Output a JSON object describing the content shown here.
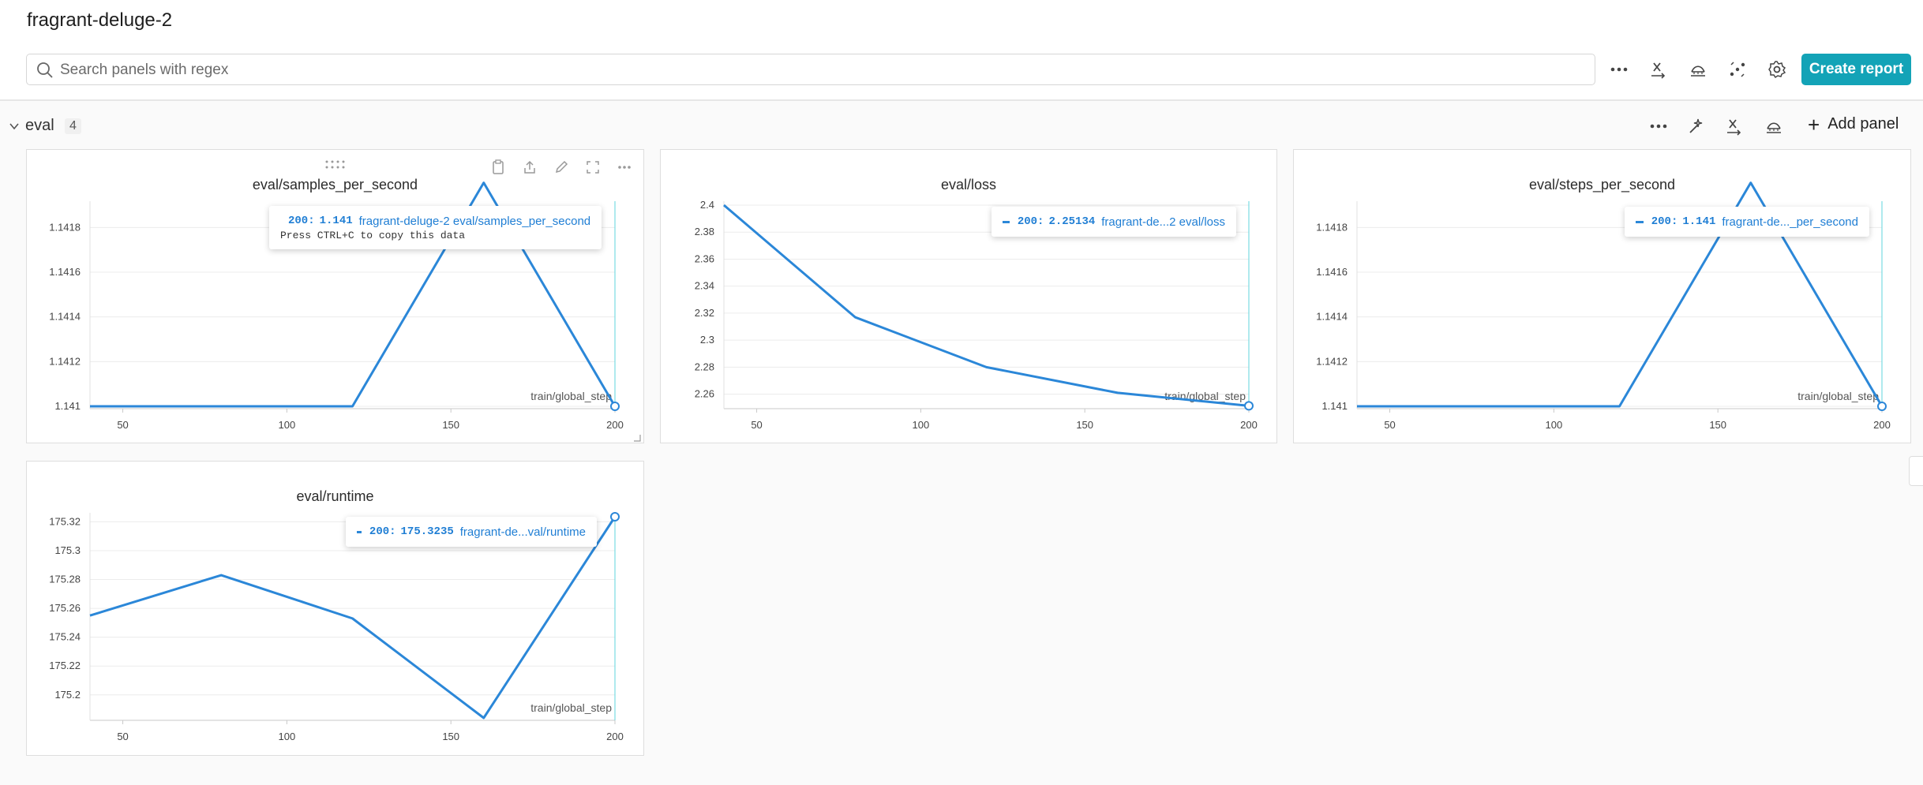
{
  "header": {
    "run_name": "fragrant-deluge-2",
    "search_placeholder": "Search panels with regex",
    "create_report_label": "Create report"
  },
  "section": {
    "title": "eval",
    "count": "4",
    "add_panel_label": "Add panel"
  },
  "colors": {
    "accent": "#13a3b7",
    "series": "#2b87d8",
    "cursor": "#5fd4de"
  },
  "panels": [
    {
      "title": "eval/samples_per_second",
      "tooltip": {
        "step": "200:",
        "value": "1.141",
        "name": "fragrant-deluge-2 eval/samples_per_second",
        "hint": "Press CTRL+C to copy this data"
      }
    },
    {
      "title": "eval/loss",
      "tooltip": {
        "step": "200:",
        "value": "2.25134",
        "name": "fragrant-de...2 eval/loss"
      }
    },
    {
      "title": "eval/steps_per_second",
      "tooltip": {
        "step": "200:",
        "value": "1.141",
        "name": "fragrant-de..._per_second"
      }
    },
    {
      "title": "eval/runtime",
      "tooltip": {
        "step": "200:",
        "value": "175.3235",
        "name": "fragrant-de...val/runtime"
      }
    }
  ],
  "chart_data": [
    {
      "type": "line",
      "title": "eval/samples_per_second",
      "xlabel": "train/global_step",
      "x": [
        40,
        80,
        120,
        160,
        200
      ],
      "series": [
        {
          "values": [
            1.141,
            1.141,
            1.141,
            1.142,
            1.141
          ]
        }
      ],
      "xticks": [
        50,
        100,
        150,
        200
      ],
      "yticks": [
        1.141,
        1.1412,
        1.1414,
        1.1416,
        1.1418
      ],
      "ytick_labels": [
        "1.141",
        "1.1412",
        "1.1414",
        "1.1416",
        "1.1418"
      ],
      "xlim": [
        40,
        200
      ],
      "ylim": [
        1.141,
        1.1419
      ],
      "grid": true
    },
    {
      "type": "line",
      "title": "eval/loss",
      "xlabel": "train/global_step",
      "x": [
        40,
        80,
        120,
        160,
        200
      ],
      "series": [
        {
          "values": [
            2.4,
            2.317,
            2.28,
            2.261,
            2.25134
          ]
        }
      ],
      "xticks": [
        50,
        100,
        150,
        200
      ],
      "yticks": [
        2.26,
        2.28,
        2.3,
        2.32,
        2.34,
        2.36,
        2.38,
        2.4
      ],
      "ytick_labels": [
        "2.26",
        "2.28",
        "2.3",
        "2.32",
        "2.34",
        "2.36",
        "2.38",
        "2.4"
      ],
      "xlim": [
        40,
        200
      ],
      "ylim": [
        2.251,
        2.4
      ],
      "grid": true
    },
    {
      "type": "line",
      "title": "eval/steps_per_second",
      "xlabel": "train/global_step",
      "x": [
        40,
        80,
        120,
        160,
        200
      ],
      "series": [
        {
          "values": [
            1.141,
            1.141,
            1.141,
            1.142,
            1.141
          ]
        }
      ],
      "xticks": [
        50,
        100,
        150,
        200
      ],
      "yticks": [
        1.141,
        1.1412,
        1.1414,
        1.1416,
        1.1418
      ],
      "ytick_labels": [
        "1.141",
        "1.1412",
        "1.1414",
        "1.1416",
        "1.1418"
      ],
      "xlim": [
        40,
        200
      ],
      "ylim": [
        1.141,
        1.1419
      ],
      "grid": true
    },
    {
      "type": "line",
      "title": "eval/runtime",
      "xlabel": "train/global_step",
      "x": [
        40,
        80,
        120,
        160,
        200
      ],
      "series": [
        {
          "values": [
            175.255,
            175.283,
            175.253,
            175.184,
            175.3235
          ]
        }
      ],
      "xticks": [
        50,
        100,
        150,
        200
      ],
      "yticks": [
        175.2,
        175.22,
        175.24,
        175.26,
        175.28,
        175.3,
        175.32
      ],
      "ytick_labels": [
        "175.2",
        "175.22",
        "175.24",
        "175.26",
        "175.28",
        "175.3",
        "175.32"
      ],
      "xlim": [
        40,
        200
      ],
      "ylim": [
        175.184,
        175.3235
      ],
      "grid": true
    }
  ]
}
